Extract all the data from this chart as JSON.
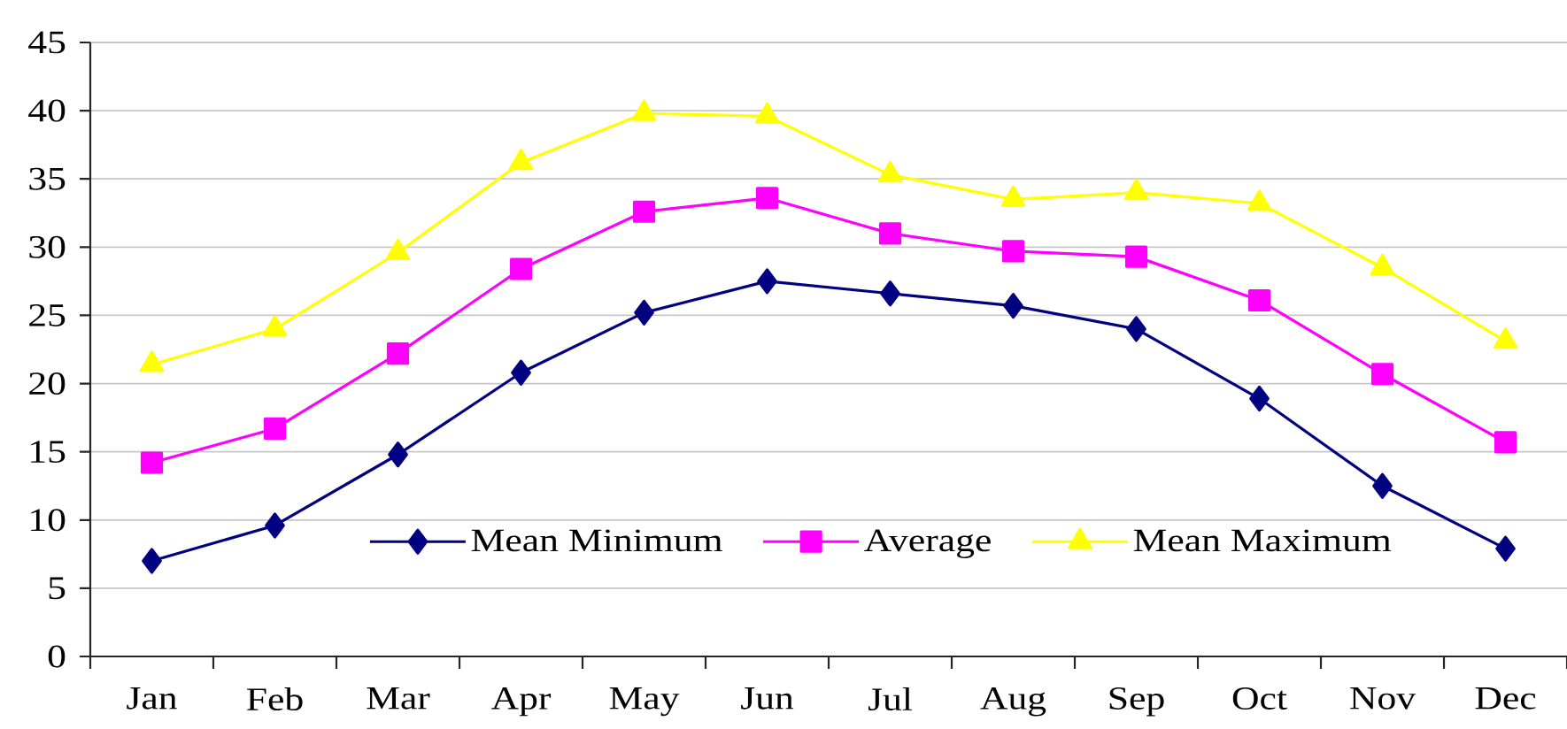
{
  "chart_data": {
    "type": "line",
    "categories": [
      "Jan",
      "Feb",
      "Mar",
      "Apr",
      "May",
      "Jun",
      "Jul",
      "Aug",
      "Sep",
      "Oct",
      "Nov",
      "Dec"
    ],
    "series": [
      {
        "name": "Mean Minimum",
        "color": "#000080",
        "marker": "diamond",
        "values": [
          7.0,
          9.6,
          14.8,
          20.8,
          25.2,
          27.5,
          26.6,
          25.7,
          24.0,
          18.9,
          12.5,
          7.9
        ]
      },
      {
        "name": "Average",
        "color": "#ff00ff",
        "marker": "square",
        "values": [
          14.2,
          16.7,
          22.2,
          28.4,
          32.6,
          33.6,
          31.0,
          29.7,
          29.3,
          26.1,
          20.7,
          15.7
        ]
      },
      {
        "name": "Mean Maximum",
        "color": "#ffff00",
        "marker": "triangle",
        "values": [
          21.4,
          24.0,
          29.6,
          36.2,
          39.8,
          39.6,
          35.3,
          33.5,
          34.0,
          33.2,
          28.5,
          23.1
        ]
      }
    ],
    "ylim": [
      0,
      45
    ],
    "yticks": [
      0,
      5,
      10,
      15,
      20,
      25,
      30,
      35,
      40,
      45
    ],
    "grid": "y",
    "legend": "bottom",
    "line_style": "solid"
  }
}
